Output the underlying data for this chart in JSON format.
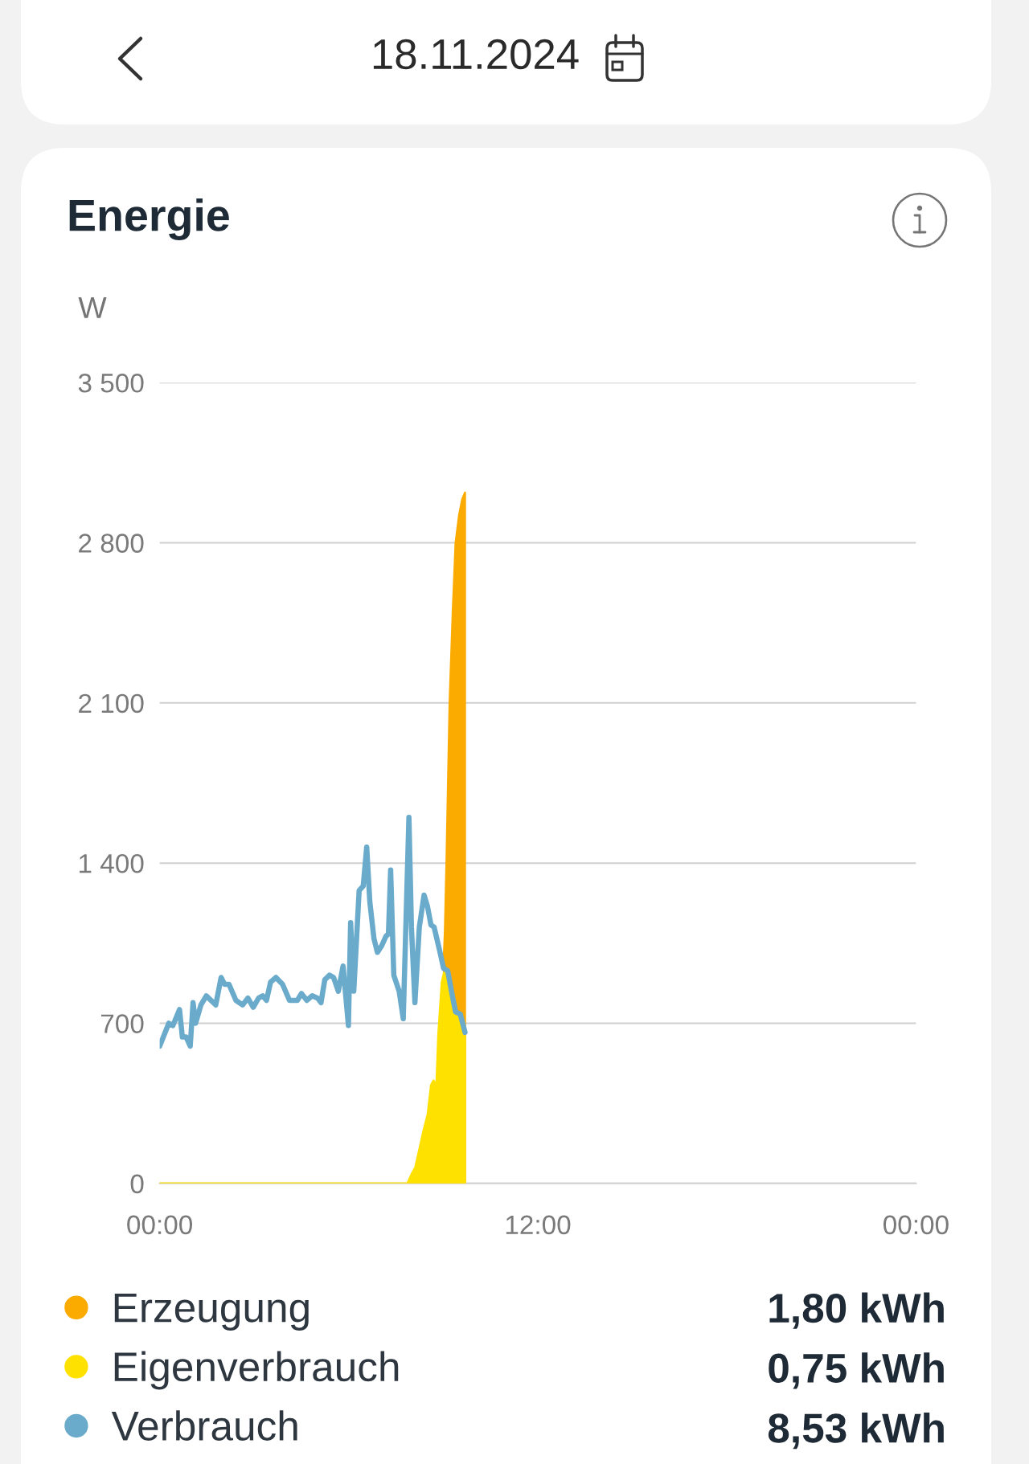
{
  "chart_data": {
    "type": "area",
    "title": "Energie",
    "subtitle": "18.11.2024",
    "ylabel": "W",
    "series": [
      {
        "name": "Erzeugung",
        "color": "#fbab00",
        "x": [
          9.02,
          9.05,
          9.1,
          9.15,
          9.2,
          9.3,
          9.39,
          9.5,
          9.6,
          9.69
        ],
        "values": [
          1000,
          1100,
          1400,
          1750,
          2100,
          2500,
          2800,
          2920,
          2990,
          3020
        ]
      },
      {
        "name": "Eigenverbrauch",
        "color": "#ffe100",
        "x": [
          0,
          7.86,
          7.99,
          8.11,
          8.24,
          8.37,
          8.5,
          8.61,
          8.69,
          8.78,
          8.84,
          8.95,
          9.02,
          9.14,
          9.26,
          9.39,
          9.54,
          9.69
        ],
        "values": [
          0,
          0,
          40,
          70,
          150,
          230,
          300,
          430,
          450,
          430,
          650,
          880,
          920,
          920,
          840,
          750,
          740,
          660
        ]
      },
      {
        "name": "Verbrauch",
        "type": "line",
        "color": "#6aaacb",
        "x": [
          0,
          0.29,
          0.42,
          0.63,
          0.72,
          0.84,
          0.97,
          1.06,
          1.14,
          1.31,
          1.48,
          1.78,
          1.95,
          2.06,
          2.2,
          2.42,
          2.63,
          2.8,
          2.97,
          3.14,
          3.27,
          3.39,
          3.52,
          3.69,
          3.9,
          4.12,
          4.37,
          4.5,
          4.67,
          4.84,
          5.01,
          5.12,
          5.24,
          5.39,
          5.52,
          5.67,
          5.82,
          5.99,
          6.06,
          6.16,
          6.33,
          6.46,
          6.57,
          6.67,
          6.8,
          6.91,
          7.05,
          7.18,
          7.26,
          7.33,
          7.43,
          7.6,
          7.73,
          7.91,
          7.99,
          8.1,
          8.24,
          8.39,
          8.5,
          8.61,
          8.71,
          8.88,
          9.01,
          9.14,
          9.26,
          9.39,
          9.54,
          9.69
        ],
        "values": [
          600,
          700,
          690,
          760,
          640,
          640,
          600,
          790,
          700,
          780,
          820,
          780,
          900,
          870,
          870,
          800,
          780,
          810,
          770,
          810,
          820,
          800,
          880,
          900,
          870,
          800,
          800,
          830,
          800,
          820,
          810,
          790,
          890,
          910,
          900,
          840,
          950,
          690,
          1140,
          840,
          1280,
          1300,
          1470,
          1230,
          1070,
          1010,
          1040,
          1080,
          1090,
          1370,
          910,
          840,
          720,
          1600,
          1120,
          790,
          1120,
          1260,
          1210,
          1130,
          1120,
          1020,
          940,
          930,
          840,
          750,
          740,
          660
        ]
      }
    ],
    "xlim": [
      0,
      24
    ],
    "xticks": [
      {
        "value": 0,
        "label": "00:00"
      },
      {
        "value": 12,
        "label": "12:00"
      },
      {
        "value": 24,
        "label": "00:00"
      }
    ],
    "ylim": [
      0,
      3500
    ],
    "yticks": [
      0,
      700,
      {
        "value": 1400,
        "label": "1 400"
      },
      {
        "value": 2100,
        "label": "2 100"
      },
      {
        "value": 2800,
        "label": "2 800"
      },
      {
        "value": 3500,
        "label": "3 500"
      }
    ],
    "grid": "y",
    "legend": "bottom",
    "line_style": "solid",
    "annotations": [
      "1,80 kWh",
      "0,75 kWh",
      "8,53 kWh"
    ]
  }
}
